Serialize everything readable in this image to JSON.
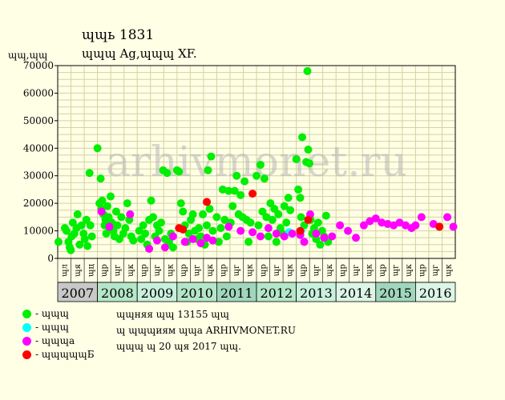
{
  "header": {
    "title": "ɰɰь 1831",
    "subtitle": "ɰɰɰ Ag,ɰɰɰ XF.",
    "ylabel": "ɰɰ,ɰɰ"
  },
  "watermark": "arhivmonet.ru",
  "legend": [
    {
      "label": "- ɰɰɰ",
      "color": "#00ee00"
    },
    {
      "label": "- ɰɰɰ",
      "color": "#00ffff"
    },
    {
      "label": "- ɰɰɰа",
      "color": "#ff00ff"
    },
    {
      "label": "- ɰɰɰɰɰБ",
      "color": "#ff0000"
    }
  ],
  "footnotes": [
    "ɰɰняя ɰɰ 13155 ɰɰ",
    "ɰ ɰɰɰиям ɰɰа ARHIVMONET.RU",
    "ɰɰɰ ɰ 20 ɰя 2017 ɰɰ."
  ],
  "chart_data": {
    "type": "scatter",
    "ylim": [
      0,
      70000
    ],
    "yticks": [
      0,
      10000,
      20000,
      30000,
      40000,
      50000,
      60000,
      70000
    ],
    "ytick_labels": [
      "0",
      "10000",
      "20000",
      "30000",
      "40000",
      "50000",
      "60000",
      "70000"
    ],
    "xlim": [
      2007,
      2017
    ],
    "quarter_labels": [
      "ɰл",
      "ɰя",
      "ɰц",
      "ɰр",
      "ɰг",
      "ɰк",
      "ɰр",
      "ɰг",
      "ɰк",
      "ɰр",
      "ɰг",
      "ɰк",
      "ɰр",
      "ɰг",
      "ɰк",
      "ɰр",
      "ɰг",
      "ɰк",
      "ɰр",
      "ɰг",
      "ɰк",
      "ɰр",
      "ɰг",
      "ɰк",
      "ɰр",
      "ɰг",
      "ɰк",
      "ɰр",
      "ɰг",
      "ɰк"
    ],
    "years": [
      "2007",
      "2008",
      "2009",
      "2010",
      "2011",
      "2012",
      "2013",
      "2014",
      "2015",
      "2016"
    ],
    "year_colors": [
      "#c8c8c8",
      "#b4e6c8",
      "#c8f0dc",
      "#b4e6c8",
      "#a0d7bc",
      "#b4e6c8",
      "#c8f0dc",
      "#dcf5e6",
      "#a0d7bc",
      "#dcf5e6"
    ],
    "series": [
      {
        "name": "- ɰɰɰ",
        "color": "#00ee00",
        "points": [
          [
            2007.02,
            6000
          ],
          [
            2007.18,
            11000
          ],
          [
            2007.22,
            10000
          ],
          [
            2007.27,
            6000
          ],
          [
            2007.3,
            4000
          ],
          [
            2007.33,
            3000
          ],
          [
            2007.35,
            8000
          ],
          [
            2007.38,
            13000
          ],
          [
            2007.42,
            9000
          ],
          [
            2007.47,
            11000
          ],
          [
            2007.5,
            16000
          ],
          [
            2007.55,
            5000
          ],
          [
            2007.6,
            12000
          ],
          [
            2007.65,
            9000
          ],
          [
            2007.68,
            7000
          ],
          [
            2007.72,
            14000
          ],
          [
            2007.75,
            4500
          ],
          [
            2007.8,
            31000
          ],
          [
            2007.82,
            12000
          ],
          [
            2007.86,
            8000
          ],
          [
            2008.0,
            40000
          ],
          [
            2008.05,
            20000
          ],
          [
            2008.08,
            29000
          ],
          [
            2008.1,
            18000
          ],
          [
            2008.12,
            21000
          ],
          [
            2008.15,
            16000
          ],
          [
            2008.18,
            12000
          ],
          [
            2008.2,
            14000
          ],
          [
            2008.22,
            9000
          ],
          [
            2008.25,
            19000
          ],
          [
            2008.28,
            15000
          ],
          [
            2008.3,
            11000
          ],
          [
            2008.33,
            22500
          ],
          [
            2008.36,
            13000
          ],
          [
            2008.4,
            10000
          ],
          [
            2008.43,
            8000
          ],
          [
            2008.47,
            17000
          ],
          [
            2008.5,
            12000
          ],
          [
            2008.55,
            7000
          ],
          [
            2008.6,
            15000
          ],
          [
            2008.65,
            9000
          ],
          [
            2008.7,
            11000
          ],
          [
            2008.75,
            20000
          ],
          [
            2008.8,
            14000
          ],
          [
            2008.85,
            8000
          ],
          [
            2008.9,
            6500
          ],
          [
            2009.05,
            10000
          ],
          [
            2009.1,
            7000
          ],
          [
            2009.15,
            12000
          ],
          [
            2009.2,
            9000
          ],
          [
            2009.25,
            5000
          ],
          [
            2009.3,
            14000
          ],
          [
            2009.35,
            21000
          ],
          [
            2009.4,
            15000
          ],
          [
            2009.45,
            8000
          ],
          [
            2009.5,
            12000
          ],
          [
            2009.55,
            10000
          ],
          [
            2009.6,
            13000
          ],
          [
            2009.65,
            32000
          ],
          [
            2009.7,
            7000
          ],
          [
            2009.75,
            31000
          ],
          [
            2009.8,
            6000
          ],
          [
            2009.85,
            9000
          ],
          [
            2009.9,
            4000
          ],
          [
            2010.0,
            32000
          ],
          [
            2010.05,
            31500
          ],
          [
            2010.1,
            20000
          ],
          [
            2010.15,
            17000
          ],
          [
            2010.2,
            12000
          ],
          [
            2010.25,
            6000
          ],
          [
            2010.3,
            9000
          ],
          [
            2010.35,
            14000
          ],
          [
            2010.4,
            16000
          ],
          [
            2010.45,
            10000
          ],
          [
            2010.5,
            7000
          ],
          [
            2010.55,
            11000
          ],
          [
            2010.6,
            8000
          ],
          [
            2010.65,
            16000
          ],
          [
            2010.7,
            5000
          ],
          [
            2010.75,
            12000
          ],
          [
            2010.78,
            32000
          ],
          [
            2010.82,
            18000
          ],
          [
            2010.86,
            37000
          ],
          [
            2010.9,
            10000
          ],
          [
            2011.0,
            15000
          ],
          [
            2011.05,
            6000
          ],
          [
            2011.1,
            11000
          ],
          [
            2011.15,
            25000
          ],
          [
            2011.2,
            14000
          ],
          [
            2011.25,
            8000
          ],
          [
            2011.3,
            24500
          ],
          [
            2011.35,
            13000
          ],
          [
            2011.4,
            19000
          ],
          [
            2011.45,
            24500
          ],
          [
            2011.5,
            30000
          ],
          [
            2011.55,
            16000
          ],
          [
            2011.6,
            23000
          ],
          [
            2011.65,
            15000
          ],
          [
            2011.7,
            28000
          ],
          [
            2011.75,
            14000
          ],
          [
            2011.8,
            6000
          ],
          [
            2011.85,
            13000
          ],
          [
            2012.0,
            30000
          ],
          [
            2012.05,
            12000
          ],
          [
            2012.1,
            34000
          ],
          [
            2012.15,
            17000
          ],
          [
            2012.2,
            29000
          ],
          [
            2012.25,
            15000
          ],
          [
            2012.3,
            8000
          ],
          [
            2012.35,
            20000
          ],
          [
            2012.4,
            14000
          ],
          [
            2012.45,
            18000
          ],
          [
            2012.5,
            6000
          ],
          [
            2012.55,
            16000
          ],
          [
            2012.6,
            11000
          ],
          [
            2012.65,
            9000
          ],
          [
            2012.7,
            19000
          ],
          [
            2012.75,
            13000
          ],
          [
            2012.8,
            22000
          ],
          [
            2012.85,
            17500
          ],
          [
            2013.0,
            36000
          ],
          [
            2013.05,
            25000
          ],
          [
            2013.1,
            22000
          ],
          [
            2013.12,
            15000
          ],
          [
            2013.15,
            44000
          ],
          [
            2013.2,
            12000
          ],
          [
            2013.25,
            35000
          ],
          [
            2013.28,
            68000
          ],
          [
            2013.3,
            39500
          ],
          [
            2013.33,
            34500
          ],
          [
            2013.36,
            14000
          ],
          [
            2013.4,
            9000
          ],
          [
            2013.45,
            11000
          ],
          [
            2013.5,
            7000
          ],
          [
            2013.55,
            13000
          ],
          [
            2013.6,
            5000
          ],
          [
            2013.65,
            10000
          ],
          [
            2013.7,
            8000
          ],
          [
            2013.75,
            15500
          ],
          [
            2013.8,
            6000
          ]
        ]
      },
      {
        "name": "- ɰɰɰ",
        "color": "#00ffff",
        "points": [
          [
            2012.82,
            9500
          ],
          [
            2013.12,
            10000
          ]
        ]
      },
      {
        "name": "- ɰɰɰа",
        "color": "#ff00ff",
        "points": [
          [
            2008.1,
            17000
          ],
          [
            2008.3,
            11500
          ],
          [
            2008.82,
            16000
          ],
          [
            2009.3,
            3500
          ],
          [
            2009.5,
            6500
          ],
          [
            2009.7,
            4000
          ],
          [
            2009.9,
            8000
          ],
          [
            2010.2,
            6000
          ],
          [
            2010.4,
            7000
          ],
          [
            2010.6,
            5500
          ],
          [
            2010.75,
            7500
          ],
          [
            2010.9,
            6500
          ],
          [
            2011.3,
            11500
          ],
          [
            2011.6,
            10000
          ],
          [
            2011.9,
            9500
          ],
          [
            2012.1,
            8000
          ],
          [
            2012.3,
            11000
          ],
          [
            2012.5,
            9000
          ],
          [
            2012.7,
            8000
          ],
          [
            2012.9,
            9000
          ],
          [
            2013.1,
            8500
          ],
          [
            2013.2,
            6000
          ],
          [
            2013.35,
            16000
          ],
          [
            2013.5,
            9000
          ],
          [
            2013.7,
            7500
          ],
          [
            2013.9,
            8000
          ],
          [
            2014.1,
            12000
          ],
          [
            2014.3,
            10000
          ],
          [
            2014.5,
            7500
          ],
          [
            2014.7,
            12000
          ],
          [
            2014.85,
            13500
          ],
          [
            2015.0,
            14500
          ],
          [
            2015.15,
            13000
          ],
          [
            2015.3,
            12500
          ],
          [
            2015.45,
            12000
          ],
          [
            2015.6,
            13000
          ],
          [
            2015.75,
            12000
          ],
          [
            2015.9,
            11000
          ],
          [
            2016.0,
            12000
          ],
          [
            2016.15,
            15000
          ],
          [
            2016.45,
            12500
          ],
          [
            2016.6,
            11500
          ],
          [
            2016.8,
            15000
          ],
          [
            2016.95,
            11500
          ]
        ]
      },
      {
        "name": "- ɰɰɰɰɰБ",
        "color": "#ff0000",
        "points": [
          [
            2010.05,
            11000
          ],
          [
            2010.15,
            10500
          ],
          [
            2010.75,
            20500
          ],
          [
            2011.9,
            23500
          ],
          [
            2013.1,
            10000
          ],
          [
            2013.3,
            14000
          ],
          [
            2016.6,
            11500
          ]
        ]
      }
    ]
  }
}
